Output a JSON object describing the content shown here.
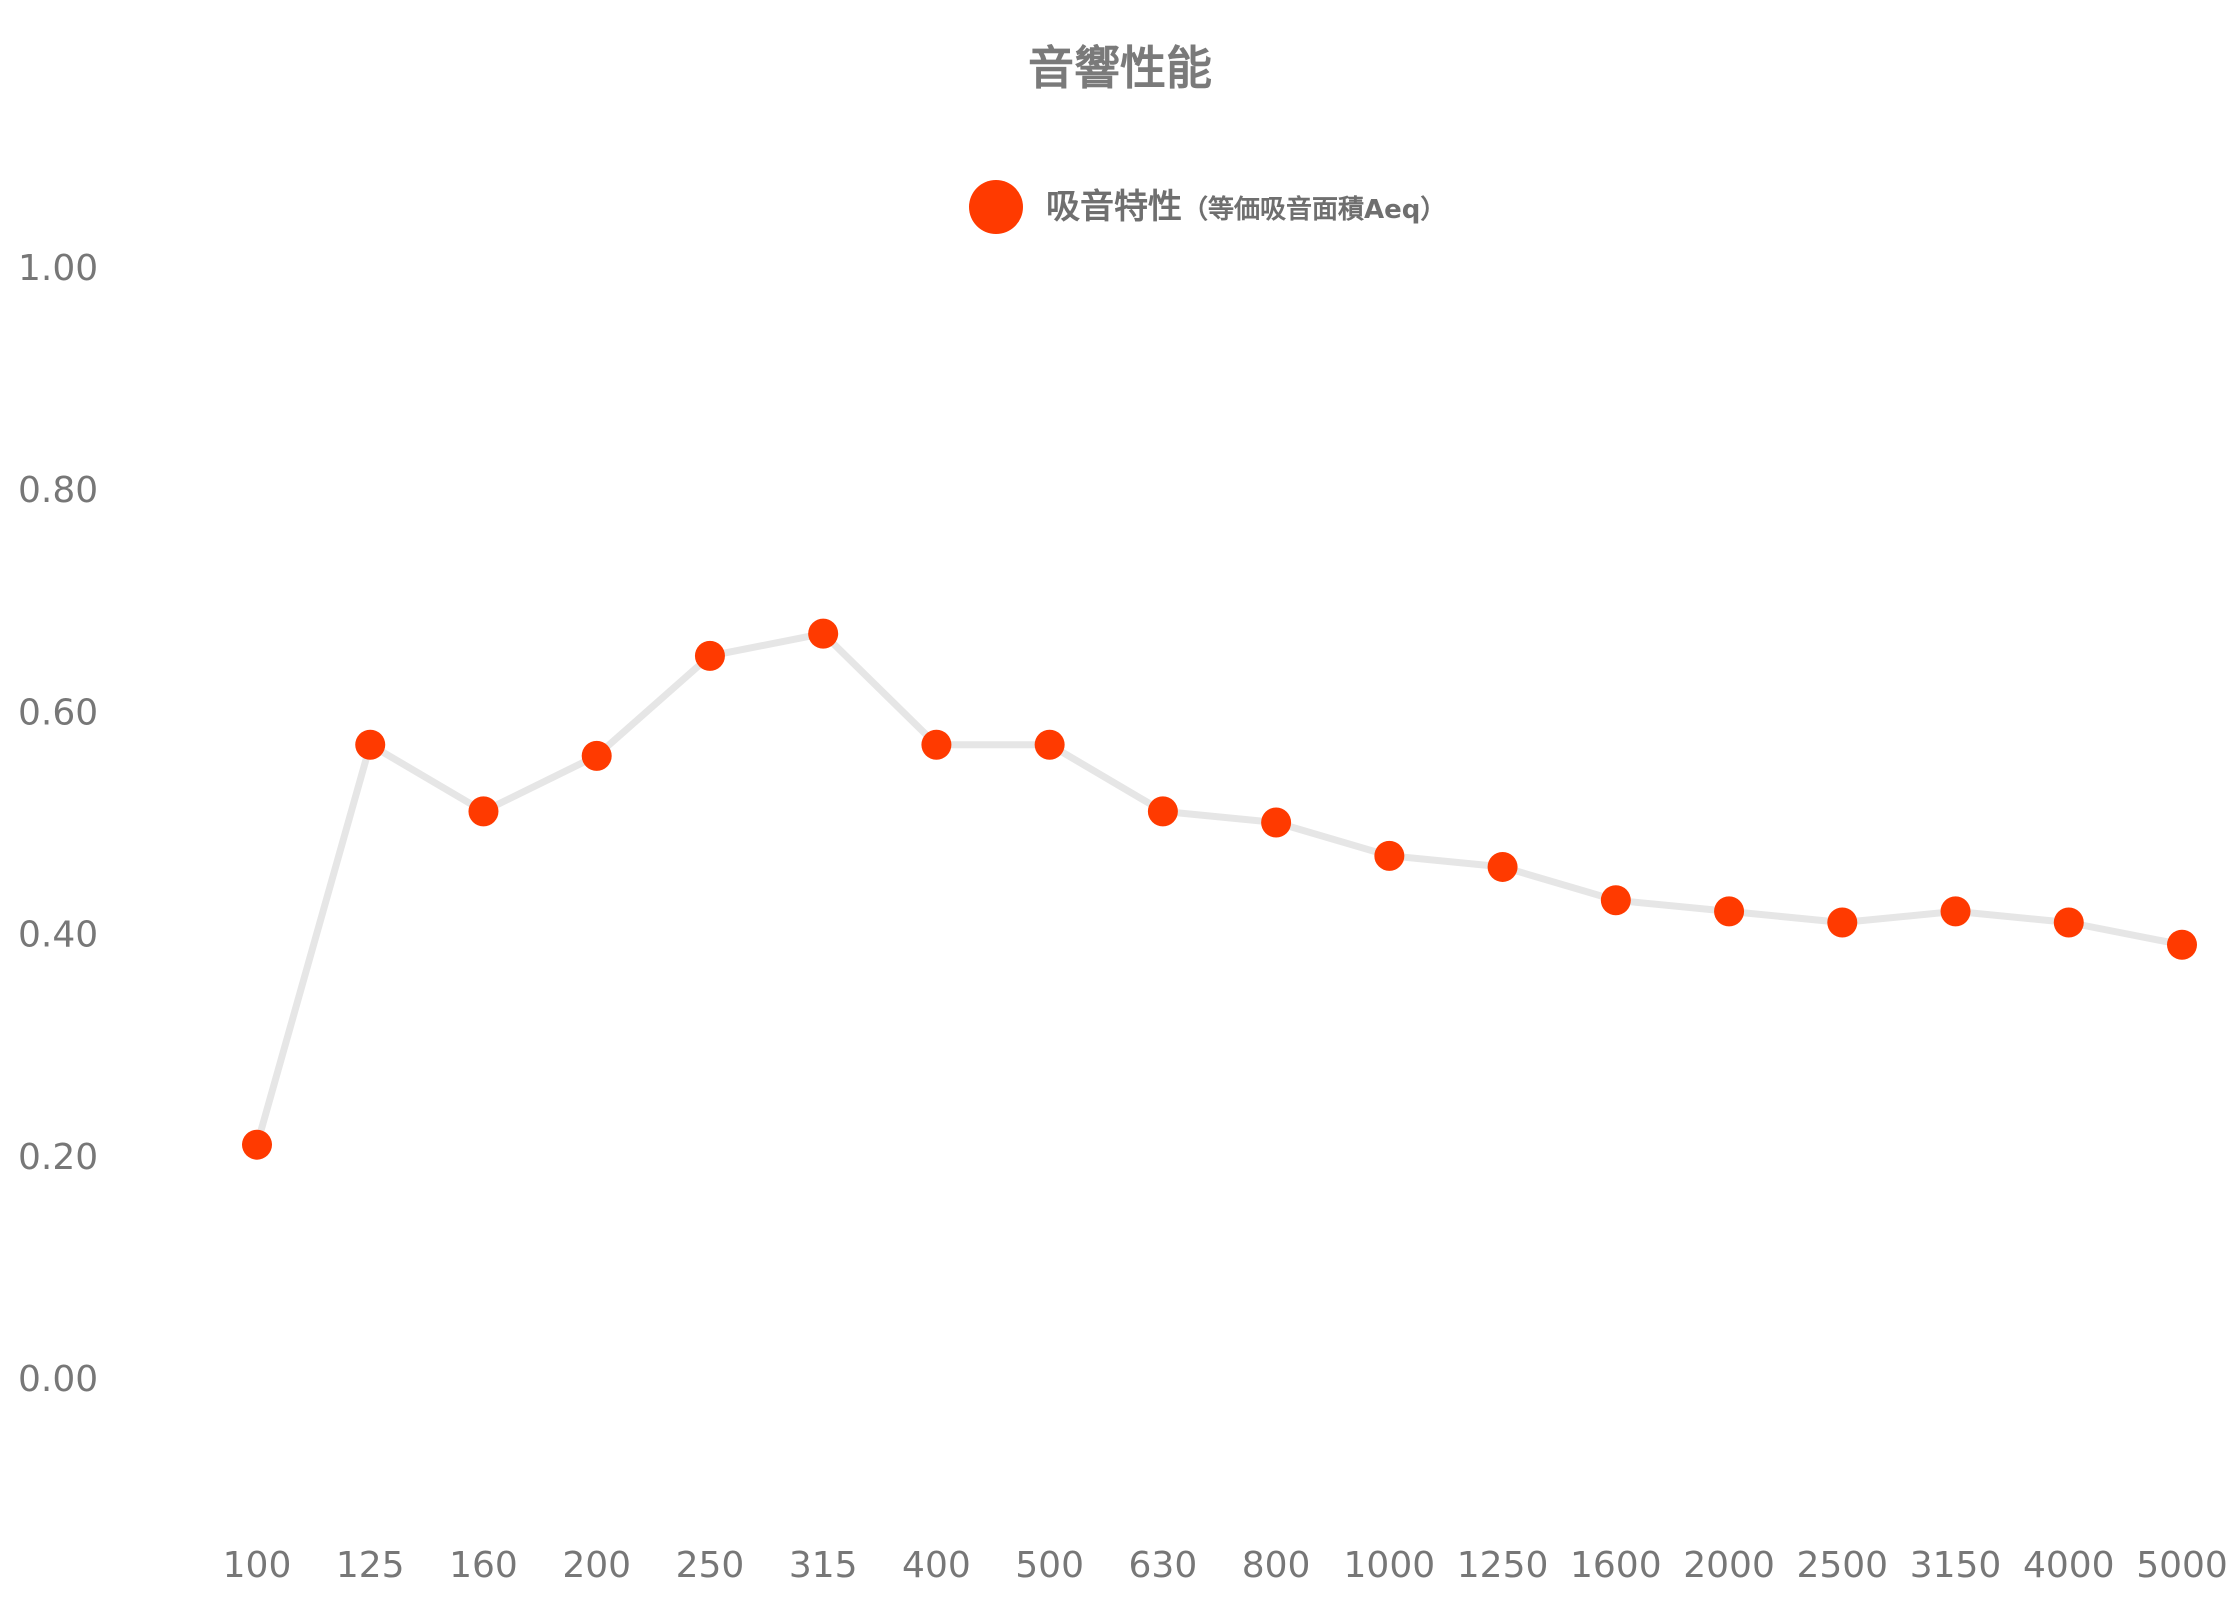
{
  "chart_data": {
    "type": "line",
    "title": "音響性能",
    "xlabel": "",
    "ylabel": "",
    "categories": [
      "100",
      "125",
      "160",
      "200",
      "250",
      "315",
      "400",
      "500",
      "630",
      "800",
      "1000",
      "1250",
      "1600",
      "2000",
      "2500",
      "3150",
      "4000",
      "5000"
    ],
    "series": [
      {
        "name": "吸音特性",
        "name_suffix": "（等価吸音面積Aeq）",
        "values": [
          0.21,
          0.57,
          0.51,
          0.56,
          0.65,
          0.67,
          0.57,
          0.57,
          0.51,
          0.5,
          0.47,
          0.46,
          0.43,
          0.42,
          0.41,
          0.42,
          0.41,
          0.39
        ]
      }
    ],
    "ylim": [
      -0.1,
      1.0
    ],
    "yticks": [
      "0.00",
      "0.20",
      "0.40",
      "0.60",
      "0.80",
      "1.00"
    ],
    "grid": false,
    "legend_position": "top-center",
    "colors": {
      "marker": "#ff3a00",
      "line": "#e6e6e6",
      "text": "#777777"
    }
  }
}
